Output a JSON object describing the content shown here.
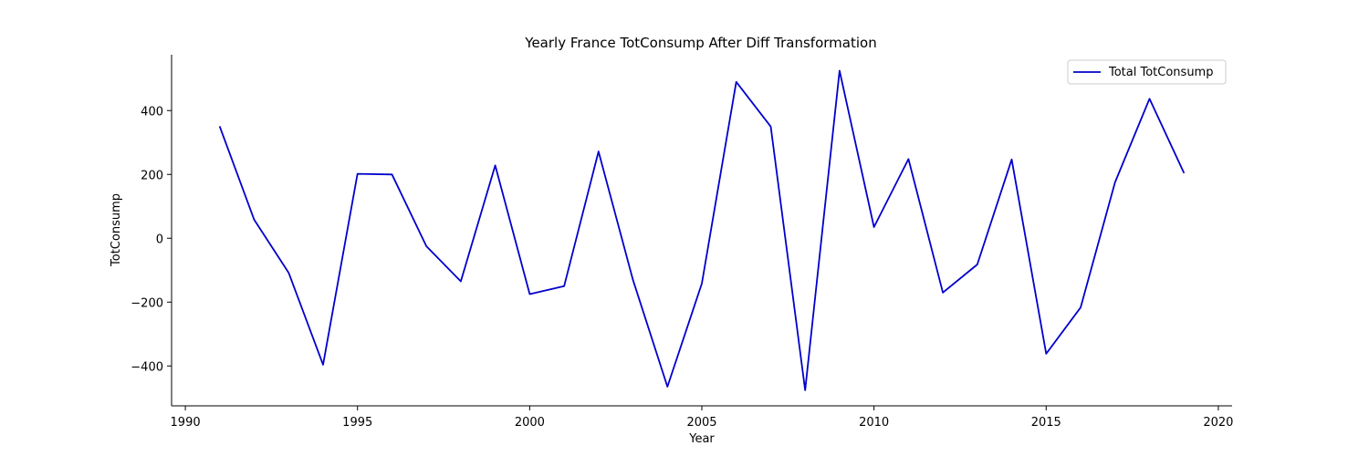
{
  "chart_data": {
    "type": "line",
    "title": "Yearly France TotConsump After Diff Transformation",
    "xlabel": "Year",
    "ylabel": "TotConsump",
    "xlim": [
      1989.6,
      2020.4
    ],
    "ylim": [
      -525,
      575
    ],
    "xticks": [
      1990,
      1995,
      2000,
      2005,
      2010,
      2015,
      2020
    ],
    "yticks": [
      -400,
      -200,
      0,
      200,
      400
    ],
    "grid": false,
    "legend": "top-right",
    "series": [
      {
        "name": "Total TotConsump",
        "color": "#0000cc",
        "x": [
          1991,
          1992,
          1993,
          1994,
          1995,
          1996,
          1997,
          1998,
          1999,
          2000,
          2001,
          2002,
          2003,
          2004,
          2005,
          2006,
          2007,
          2008,
          2009,
          2010,
          2011,
          2012,
          2013,
          2014,
          2015,
          2016,
          2017,
          2018,
          2019
        ],
        "values": [
          350,
          58,
          -108,
          -396,
          202,
          200,
          -25,
          -135,
          228,
          -175,
          -150,
          272,
          -130,
          -465,
          -142,
          490,
          350,
          -476,
          525,
          35,
          248,
          -170,
          -82,
          247,
          -362,
          -217,
          175,
          437,
          205
        ]
      }
    ]
  }
}
